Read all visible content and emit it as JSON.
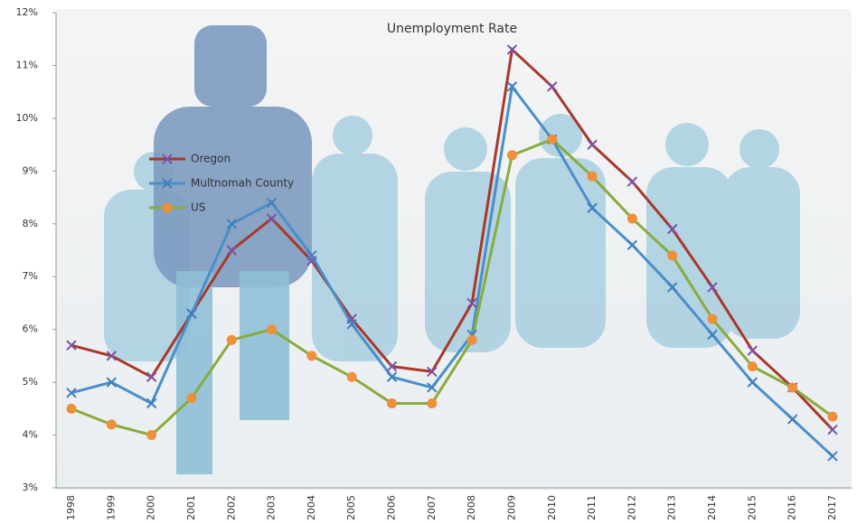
{
  "chart_data": {
    "type": "line",
    "title": "Unemployment Rate",
    "categories": [
      "1998",
      "1999",
      "2000",
      "2001",
      "2002",
      "2003",
      "2004",
      "2005",
      "2006",
      "2007",
      "2008",
      "2009",
      "2010",
      "2011",
      "2012",
      "2013",
      "2014",
      "2015",
      "2016",
      "2017"
    ],
    "series": [
      {
        "name": "Oregon",
        "color": "#a8382b",
        "marker": "x",
        "marker_color": "#7b52a3",
        "values": [
          5.7,
          5.5,
          5.1,
          6.3,
          7.5,
          8.1,
          7.3,
          6.2,
          5.3,
          5.2,
          6.5,
          11.3,
          10.6,
          9.5,
          8.8,
          7.9,
          6.8,
          5.6,
          4.9,
          4.1
        ]
      },
      {
        "name": "Multnomah County",
        "color": "#4a8fca",
        "marker": "x",
        "marker_color": "#3f7fbf",
        "values": [
          4.8,
          5.0,
          4.6,
          6.3,
          8.0,
          8.4,
          7.4,
          6.1,
          5.1,
          4.9,
          5.9,
          10.6,
          9.6,
          8.3,
          7.6,
          6.8,
          5.9,
          5.0,
          4.3,
          3.6
        ]
      },
      {
        "name": "US",
        "color": "#8aab3c",
        "marker": "circle",
        "marker_color": "#ef8f3a",
        "values": [
          4.5,
          4.2,
          4.0,
          4.7,
          5.8,
          6.0,
          5.5,
          5.1,
          4.6,
          4.6,
          5.8,
          9.3,
          9.6,
          8.9,
          8.1,
          7.4,
          6.2,
          5.3,
          4.9,
          4.35
        ]
      }
    ],
    "ylim": [
      3,
      12
    ],
    "yticks": [
      {
        "value": 3,
        "label": "3%"
      },
      {
        "value": 4,
        "label": "4%"
      },
      {
        "value": 5,
        "label": "5%"
      },
      {
        "value": 6,
        "label": "6%"
      },
      {
        "value": 7,
        "label": "7%"
      },
      {
        "value": 8,
        "label": "8%"
      },
      {
        "value": 9,
        "label": "9%"
      },
      {
        "value": 10,
        "label": "10%"
      },
      {
        "value": 11,
        "label": "11%"
      },
      {
        "value": 12,
        "label": "12%"
      }
    ],
    "grid": false,
    "legend": "upper-left"
  }
}
